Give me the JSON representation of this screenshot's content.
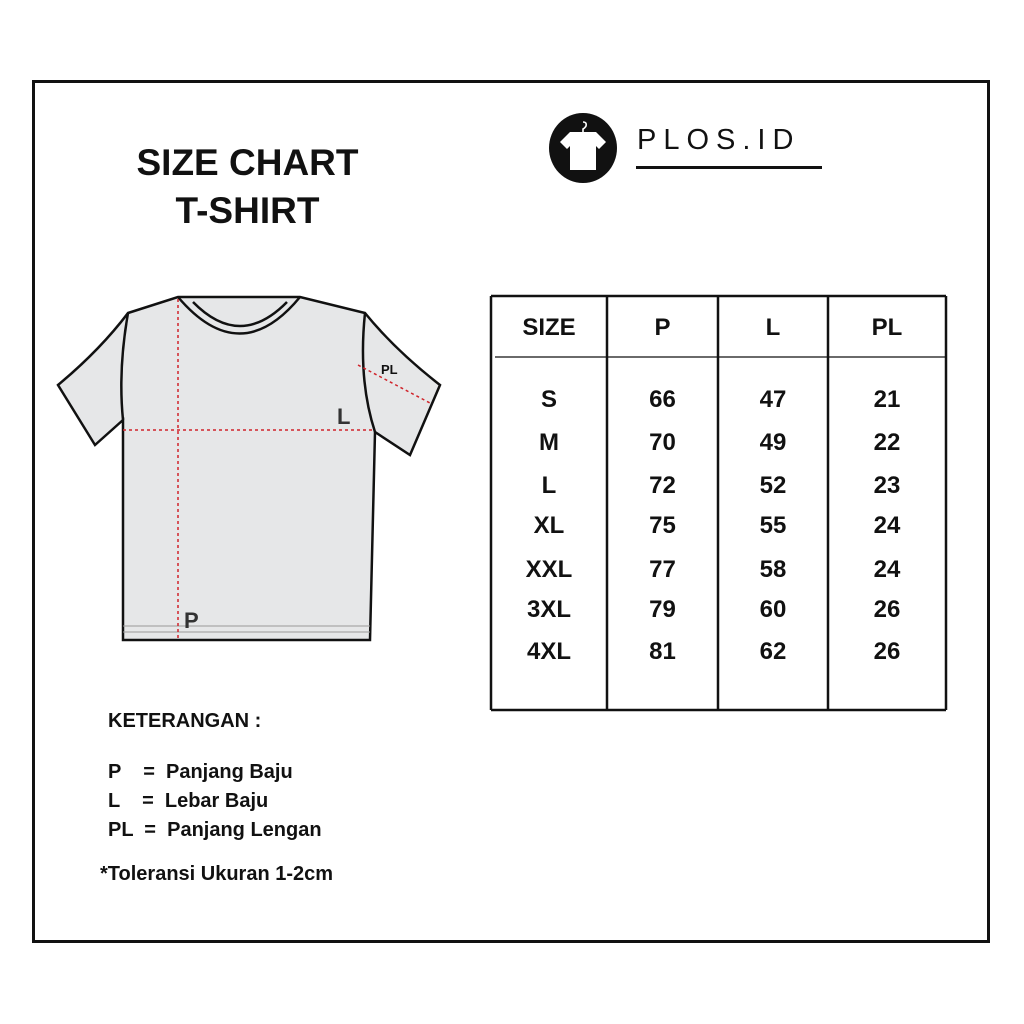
{
  "title": {
    "line1": "SIZE CHART",
    "line2": "T-SHIRT"
  },
  "brand": {
    "name": "PLOS.ID",
    "logo_icon": "tshirt-hanger-icon"
  },
  "diagram": {
    "labels": {
      "length": "P",
      "width": "L",
      "sleeve": "PL"
    },
    "measure_color": "#d0242b",
    "shirt_fill": "#e6e7e8"
  },
  "table": {
    "headers": [
      "SIZE",
      "P",
      "L",
      "PL"
    ],
    "rows": [
      [
        "S",
        "66",
        "47",
        "21"
      ],
      [
        "M",
        "70",
        "49",
        "22"
      ],
      [
        "L",
        "72",
        "52",
        "23"
      ],
      [
        "XL",
        "75",
        "55",
        "24"
      ],
      [
        "XXL",
        "77",
        "58",
        "24"
      ],
      [
        "3XL",
        "79",
        "60",
        "26"
      ],
      [
        "4XL",
        "81",
        "62",
        "26"
      ]
    ]
  },
  "legend": {
    "heading": "KETERANGAN :",
    "items": [
      "P    =  Panjang Baju",
      "L    =  Lebar Baju",
      "PL  =  Panjang Lengan"
    ],
    "note": "*Toleransi Ukuran 1-2cm"
  }
}
